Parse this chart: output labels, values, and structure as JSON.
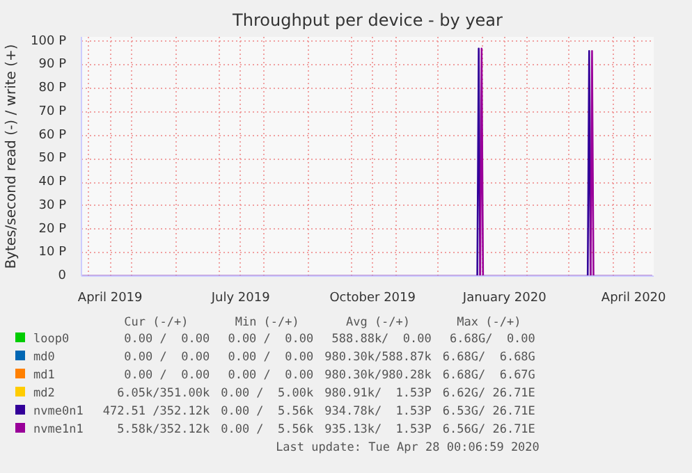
{
  "chart_data": {
    "type": "line",
    "title": "Throughput per device - by year",
    "ylabel": "Bytes/second read (-) / write (+)",
    "xlim": [
      "2019-03-27",
      "2020-04-29"
    ],
    "ylim": [
      0,
      102
    ],
    "xticks": [
      {
        "value": "2019-04-01",
        "label": null
      },
      {
        "value": "2019-04-16",
        "label": "April 2019"
      },
      {
        "value": "2019-05-01",
        "label": null
      },
      {
        "value": "2019-06-01",
        "label": null
      },
      {
        "value": "2019-07-01",
        "label": null
      },
      {
        "value": "2019-07-16",
        "label": "July 2019"
      },
      {
        "value": "2019-08-01",
        "label": null
      },
      {
        "value": "2019-09-01",
        "label": null
      },
      {
        "value": "2019-10-01",
        "label": null
      },
      {
        "value": "2019-10-16",
        "label": "October 2019"
      },
      {
        "value": "2019-11-01",
        "label": null
      },
      {
        "value": "2019-12-01",
        "label": null
      },
      {
        "value": "2020-01-01",
        "label": null
      },
      {
        "value": "2020-01-16",
        "label": "January 2020"
      },
      {
        "value": "2020-02-01",
        "label": null
      },
      {
        "value": "2020-03-01",
        "label": null
      },
      {
        "value": "2020-04-01",
        "label": null
      },
      {
        "value": "2020-04-15",
        "label": "April 2020"
      }
    ],
    "yticks": [
      0,
      {
        "value": 10,
        "label": "10 P"
      },
      {
        "value": 20,
        "label": "20 P"
      },
      {
        "value": 30,
        "label": "30 P"
      },
      {
        "value": 40,
        "label": "40 P"
      },
      {
        "value": 50,
        "label": "50 P"
      },
      {
        "value": 60,
        "label": "60 P"
      },
      {
        "value": 70,
        "label": "70 P"
      },
      {
        "value": 80,
        "label": "80 P"
      },
      {
        "value": 90,
        "label": "90 P"
      },
      {
        "value": 100,
        "label": "100 P"
      }
    ],
    "grid": true,
    "legend": "bottom",
    "series": [
      {
        "name": "loop0",
        "color": "#00cc00"
      },
      {
        "name": "md0",
        "color": "#0066b3"
      },
      {
        "name": "md1",
        "color": "#ff8000"
      },
      {
        "name": "md2",
        "color": "#ffcc00"
      },
      {
        "name": "nvme0n1",
        "color": "#330099",
        "x": [
          "2019-03-27",
          "2019-12-28",
          "2019-12-29",
          "2019-12-30",
          "2020-03-14",
          "2020-03-15",
          "2020-03-16",
          "2020-04-28"
        ],
        "values": [
          0,
          0,
          97,
          0,
          0,
          96,
          0,
          0
        ]
      },
      {
        "name": "nvme1n1",
        "color": "#990099",
        "x": [
          "2019-03-27",
          "2019-12-30",
          "2019-12-31",
          "2020-01-01",
          "2020-03-16",
          "2020-03-17",
          "2020-03-18",
          "2020-04-28"
        ],
        "values": [
          0,
          0,
          97,
          0,
          0,
          96,
          0,
          0
        ]
      }
    ],
    "annotations": [
      "Cur (-/+)",
      "Min (-/+)",
      "Avg (-/+)",
      "Max (-/+)",
      "0.00 /  0.00",
      "0.00 /  0.00",
      "588.88k/  0.00",
      "6.68G/  0.00",
      "0.00 /  0.00",
      "0.00 /  0.00",
      "980.30k/588.87k",
      "6.68G/  6.68G",
      "0.00 /  0.00",
      "0.00 /  0.00",
      "980.30k/980.28k",
      "6.68G/  6.67G",
      "6.05k/351.00k",
      "0.00 /  5.00k",
      "980.91k/  1.53P",
      "6.62G/ 26.71E",
      "472.51 /352.12k",
      "0.00 /  5.56k",
      "934.78k/  1.53P",
      "6.53G/ 26.71E",
      "5.58k/352.12k",
      "0.00 /  5.56k",
      "935.13k/  1.53P",
      "6.56G/ 26.71E",
      "Last update: Tue Apr 28 00:06:59 2020"
    ]
  }
}
